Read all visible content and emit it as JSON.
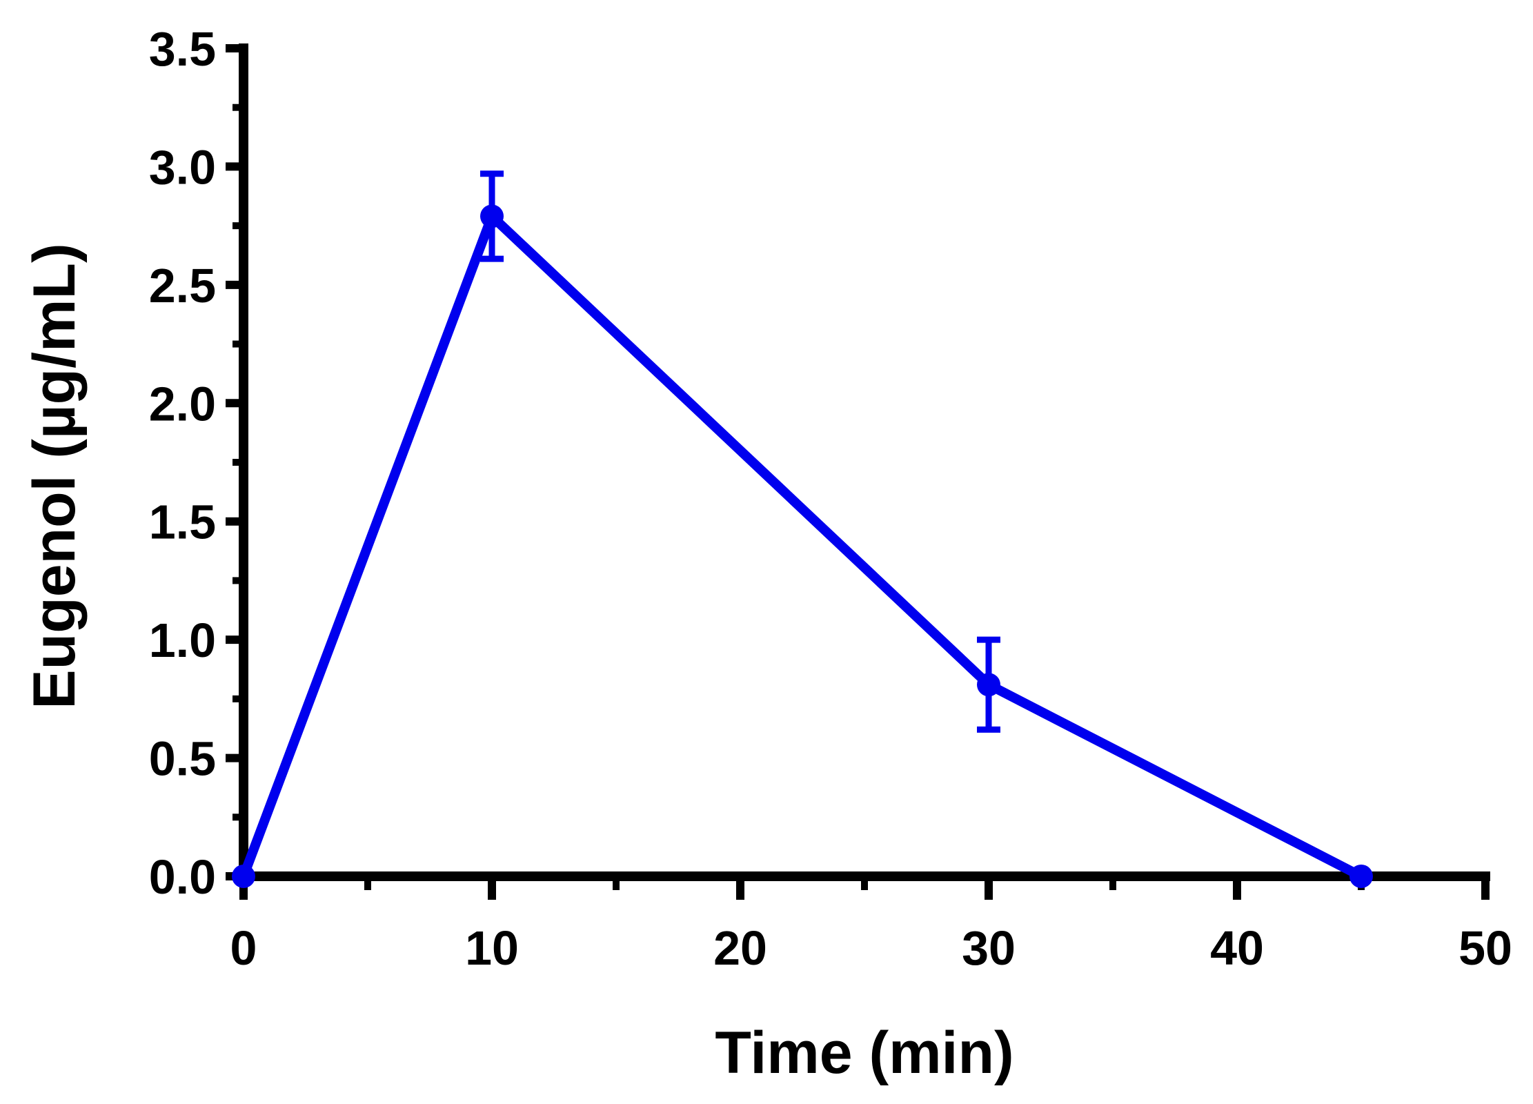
{
  "chart_data": {
    "type": "line",
    "title": "",
    "xlabel": "Time (min)",
    "ylabel": "Eugenol (µg/mL)",
    "xlim": [
      0,
      50
    ],
    "ylim": [
      0,
      3.5
    ],
    "x_ticks": [
      0,
      10,
      20,
      30,
      40,
      50
    ],
    "x_tick_labels": [
      "0",
      "10",
      "20",
      "30",
      "40",
      "50"
    ],
    "x_minor_ticks": [
      5,
      15,
      25,
      35,
      45
    ],
    "y_ticks": [
      0,
      0.5,
      1.0,
      1.5,
      2.0,
      2.5,
      3.0,
      3.5
    ],
    "y_tick_labels": [
      "0.0",
      "0.5",
      "1.0",
      "1.5",
      "2.0",
      "2.5",
      "3.0",
      "3.5"
    ],
    "y_minor_ticks": [
      0.25,
      0.75,
      1.25,
      1.75,
      2.25,
      2.75,
      3.25
    ],
    "grid": false,
    "legend": "none",
    "series": [
      {
        "color": "#0000ee",
        "x": [
          0,
          10,
          30,
          45
        ],
        "y": [
          0,
          2.79,
          0.81,
          0
        ],
        "error": [
          0,
          0.18,
          0.19,
          0
        ]
      }
    ]
  }
}
